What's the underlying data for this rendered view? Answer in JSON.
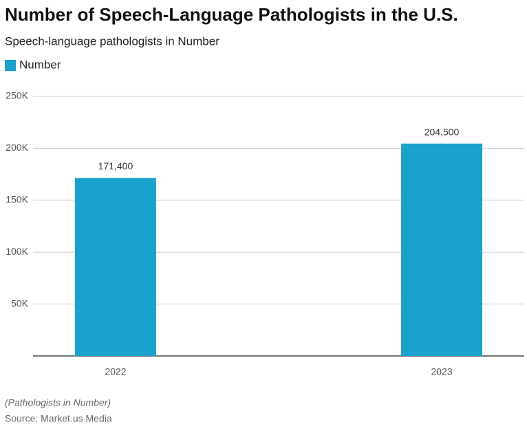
{
  "chart_data": {
    "type": "bar",
    "title": "Number of Speech-Language Pathologists in the U.S.",
    "subtitle": "Speech-language pathologists in Number",
    "categories": [
      "2022",
      "2023"
    ],
    "series": [
      {
        "name": "Number",
        "color": "#1aa1cc",
        "values": [
          171400,
          204500
        ],
        "value_labels": [
          "171,400",
          "204,500"
        ]
      }
    ],
    "ylim": [
      0,
      250000
    ],
    "yticks": [
      {
        "value": 50000,
        "label": "50K"
      },
      {
        "value": 100000,
        "label": "100K"
      },
      {
        "value": 150000,
        "label": "150K"
      },
      {
        "value": 200000,
        "label": "200K"
      },
      {
        "value": 250000,
        "label": "250K"
      }
    ],
    "grid": true,
    "legend": "top-left",
    "note": "(Pathologists in Number)",
    "source": "Source: Market.us Media"
  }
}
